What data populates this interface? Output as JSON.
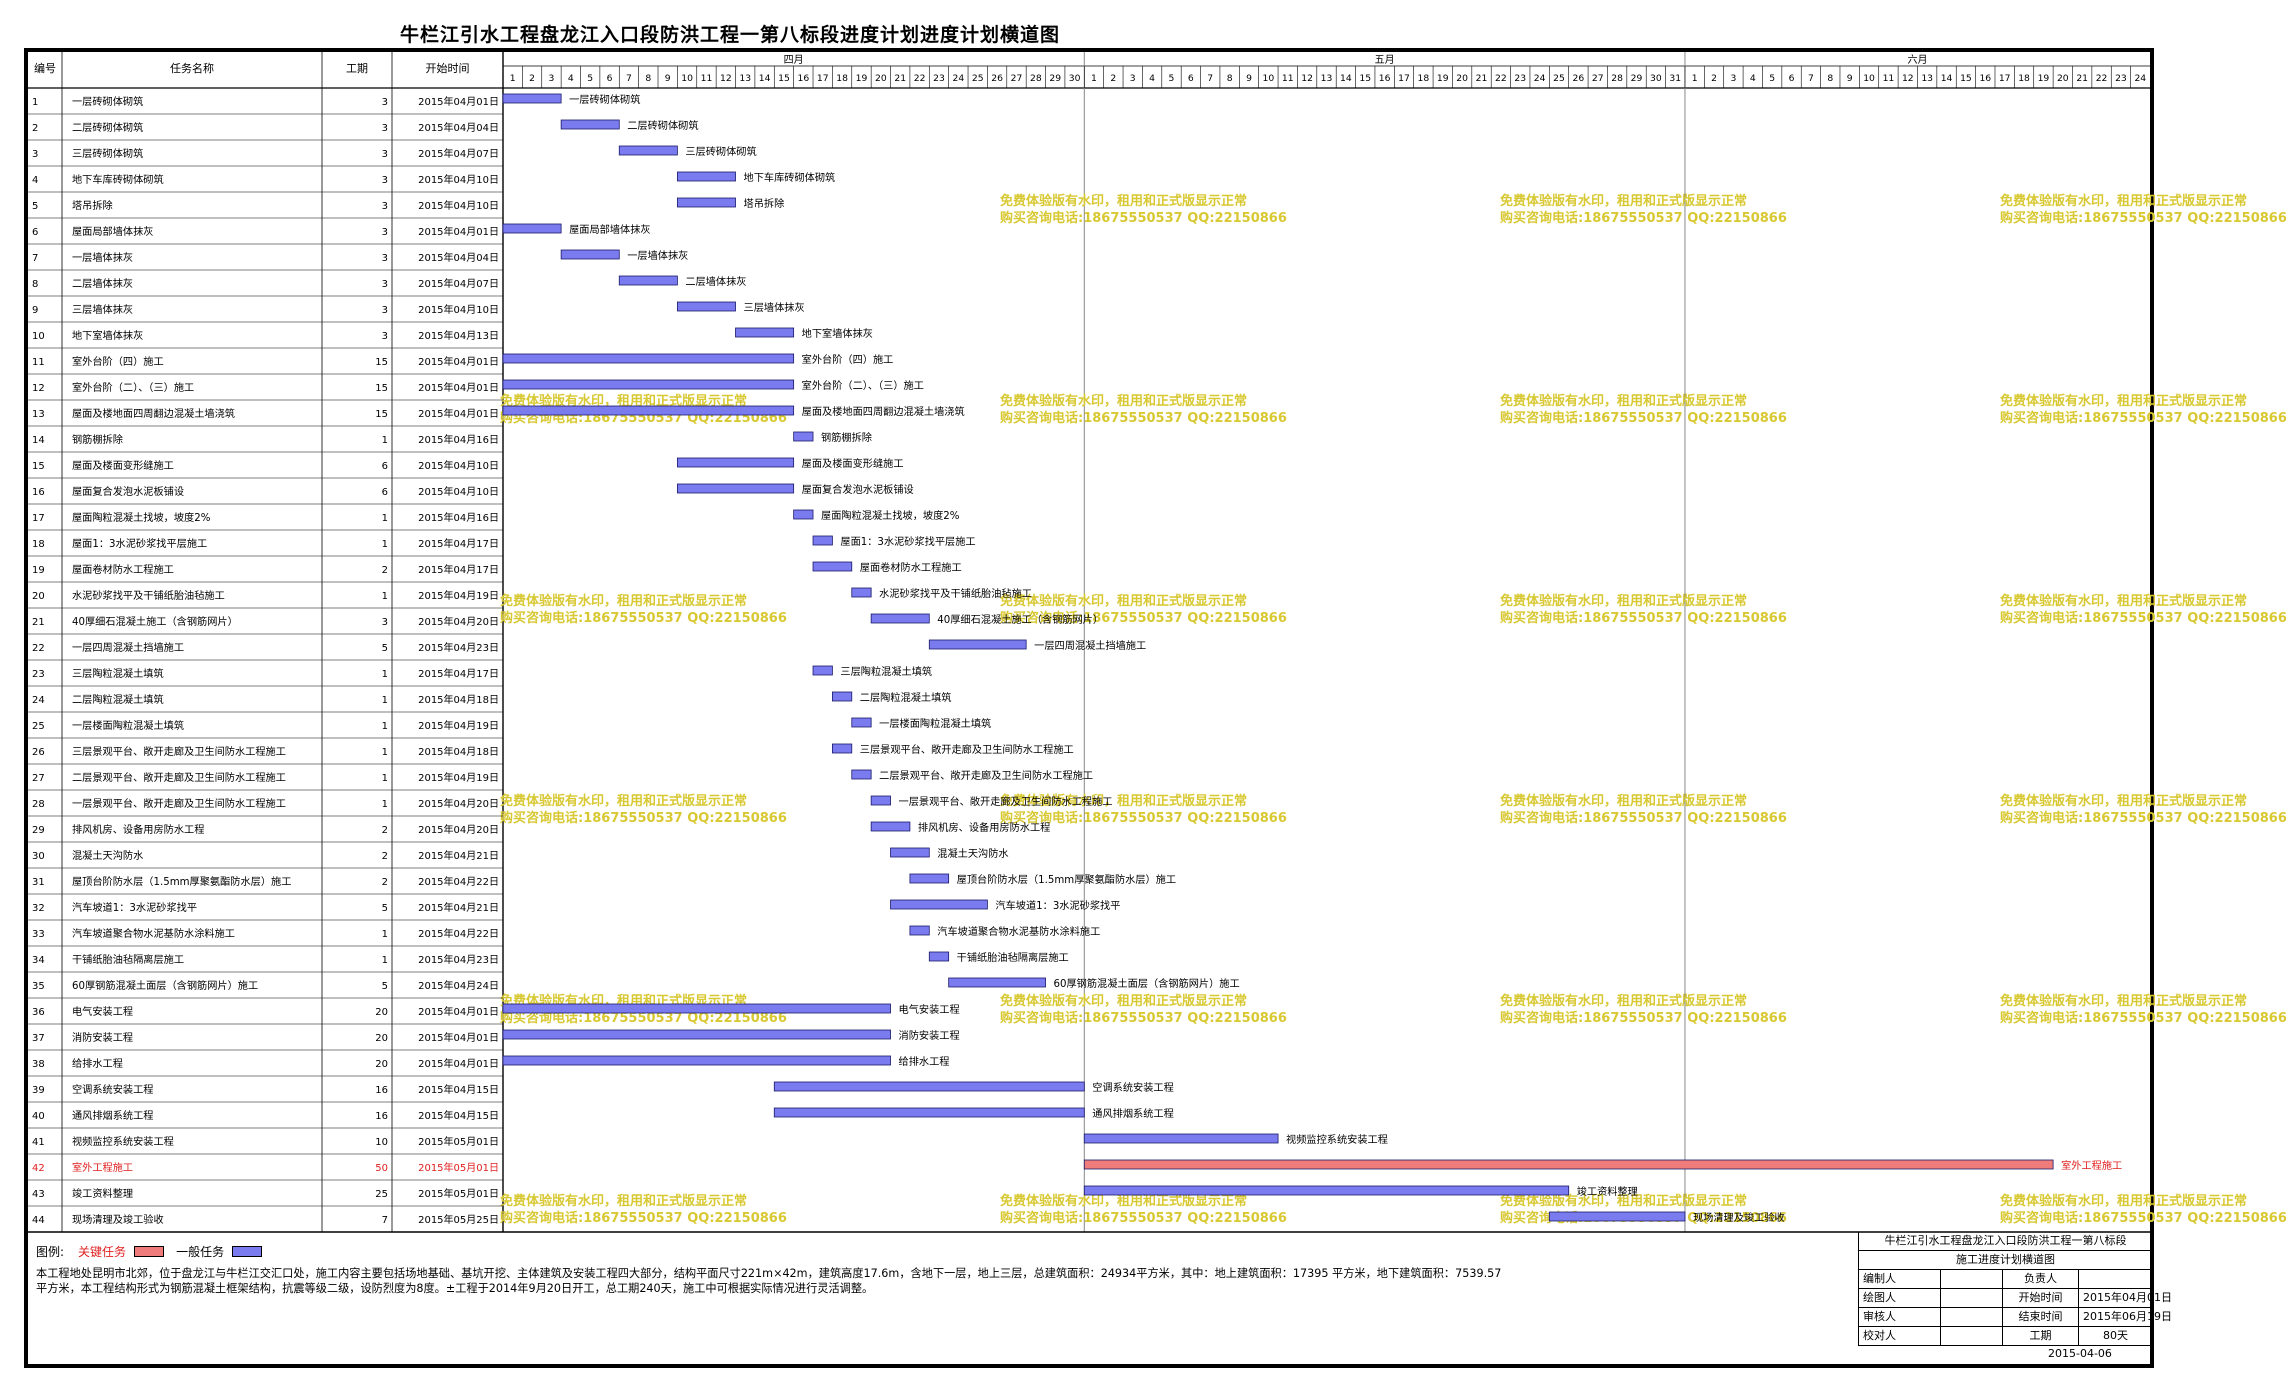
{
  "title": "牛栏江引水工程盘龙江入口段防洪工程一第八标段进度计划进度计划横道图",
  "table_headers": {
    "id": "编号",
    "name": "任务名称",
    "duration": "工期",
    "start": "开始时间"
  },
  "month_labels": [
    "四月",
    "五月",
    "六月"
  ],
  "colors": {
    "normal_bar": "#7b7bf0",
    "critical_bar": "#f07b7b",
    "critical_text": "#e02020",
    "watermark": "#d8c832"
  },
  "watermark": {
    "line1": "免费体验版有水印，租用和正式版显示正常",
    "line2": "购买咨询电话:18675550537 QQ:22150866"
  },
  "chart_data": {
    "type": "gantt",
    "start_date": "2015-04-01",
    "timeline_days": 85,
    "months": [
      {
        "label": "四月",
        "days": 30
      },
      {
        "label": "五月",
        "days": 31
      },
      {
        "label": "六月",
        "days": 24
      }
    ],
    "tasks": [
      {
        "id": "1",
        "name": "一层砖砌体砌筑",
        "duration": 3,
        "start": "2015年04月01日",
        "start_day": 1,
        "label": "一层砖砌体砌筑"
      },
      {
        "id": "2",
        "name": "二层砖砌体砌筑",
        "duration": 3,
        "start": "2015年04月04日",
        "start_day": 4,
        "label": "二层砖砌体砌筑"
      },
      {
        "id": "3",
        "name": "三层砖砌体砌筑",
        "duration": 3,
        "start": "2015年04月07日",
        "start_day": 7,
        "label": "三层砖砌体砌筑"
      },
      {
        "id": "4",
        "name": "地下车库砖砌体砌筑",
        "duration": 3,
        "start": "2015年04月10日",
        "start_day": 10,
        "label": "地下车库砖砌体砌筑"
      },
      {
        "id": "5",
        "name": "塔吊拆除",
        "duration": 3,
        "start": "2015年04月10日",
        "start_day": 10,
        "label": "塔吊拆除"
      },
      {
        "id": "6",
        "name": "屋面局部墙体抹灰",
        "duration": 3,
        "start": "2015年04月01日",
        "start_day": 1,
        "label": "屋面局部墙体抹灰"
      },
      {
        "id": "7",
        "name": "一层墙体抹灰",
        "duration": 3,
        "start": "2015年04月04日",
        "start_day": 4,
        "label": "一层墙体抹灰"
      },
      {
        "id": "8",
        "name": "二层墙体抹灰",
        "duration": 3,
        "start": "2015年04月07日",
        "start_day": 7,
        "label": "二层墙体抹灰"
      },
      {
        "id": "9",
        "name": "三层墙体抹灰",
        "duration": 3,
        "start": "2015年04月10日",
        "start_day": 10,
        "label": "三层墙体抹灰"
      },
      {
        "id": "10",
        "name": "地下室墙体抹灰",
        "duration": 3,
        "start": "2015年04月13日",
        "start_day": 13,
        "label": "地下室墙体抹灰"
      },
      {
        "id": "11",
        "name": "室外台阶（四）施工",
        "duration": 15,
        "start": "2015年04月01日",
        "start_day": 1,
        "label": "室外台阶（四）施工"
      },
      {
        "id": "12",
        "name": "室外台阶（二）、（三）施工",
        "duration": 15,
        "start": "2015年04月01日",
        "start_day": 1,
        "label": "室外台阶（二）、（三）施工"
      },
      {
        "id": "13",
        "name": "屋面及楼地面四周翻边混凝土墙浇筑",
        "duration": 15,
        "start": "2015年04月01日",
        "start_day": 1,
        "label": "屋面及楼地面四周翻边混凝土墙浇筑"
      },
      {
        "id": "14",
        "name": "钢筋棚拆除",
        "duration": 1,
        "start": "2015年04月16日",
        "start_day": 16,
        "label": "钢筋棚拆除"
      },
      {
        "id": "15",
        "name": "屋面及楼面变形缝施工",
        "duration": 6,
        "start": "2015年04月10日",
        "start_day": 10,
        "label": "屋面及楼面变形缝施工"
      },
      {
        "id": "16",
        "name": "屋面复合发泡水泥板铺设",
        "duration": 6,
        "start": "2015年04月10日",
        "start_day": 10,
        "label": "屋面复合发泡水泥板铺设"
      },
      {
        "id": "17",
        "name": "屋面陶粒混凝土找坡，坡度2%",
        "duration": 1,
        "start": "2015年04月16日",
        "start_day": 16,
        "label": "屋面陶粒混凝土找坡，坡度2%"
      },
      {
        "id": "18",
        "name": "屋面1：3水泥砂浆找平层施工",
        "duration": 1,
        "start": "2015年04月17日",
        "start_day": 17,
        "label": "屋面1：3水泥砂浆找平层施工"
      },
      {
        "id": "19",
        "name": "屋面卷材防水工程施工",
        "duration": 2,
        "start": "2015年04月17日",
        "start_day": 17,
        "label": "屋面卷材防水工程施工"
      },
      {
        "id": "20",
        "name": "水泥砂浆找平及干铺纸胎油毡施工",
        "duration": 1,
        "start": "2015年04月19日",
        "start_day": 19,
        "label": "水泥砂浆找平及干铺纸胎油毡施工"
      },
      {
        "id": "21",
        "name": "40厚细石混凝土施工（含钢筋网片）",
        "duration": 3,
        "start": "2015年04月20日",
        "start_day": 20,
        "label": "40厚细石混凝土施工（含钢筋网片）"
      },
      {
        "id": "22",
        "name": "一层四周混凝土挡墙施工",
        "duration": 5,
        "start": "2015年04月23日",
        "start_day": 23,
        "label": "一层四周混凝土挡墙施工"
      },
      {
        "id": "23",
        "name": "三层陶粒混凝土填筑",
        "duration": 1,
        "start": "2015年04月17日",
        "start_day": 17,
        "label": "三层陶粒混凝土填筑"
      },
      {
        "id": "24",
        "name": "二层陶粒混凝土填筑",
        "duration": 1,
        "start": "2015年04月18日",
        "start_day": 18,
        "label": "二层陶粒混凝土填筑"
      },
      {
        "id": "25",
        "name": "一层楼面陶粒混凝土填筑",
        "duration": 1,
        "start": "2015年04月19日",
        "start_day": 19,
        "label": "一层楼面陶粒混凝土填筑"
      },
      {
        "id": "26",
        "name": "三层景观平台、敞开走廊及卫生间防水工程施工",
        "duration": 1,
        "start": "2015年04月18日",
        "start_day": 18,
        "label": "三层景观平台、敞开走廊及卫生间防水工程施工"
      },
      {
        "id": "27",
        "name": "二层景观平台、敞开走廊及卫生间防水工程施工",
        "duration": 1,
        "start": "2015年04月19日",
        "start_day": 19,
        "label": "二层景观平台、敞开走廊及卫生间防水工程施工"
      },
      {
        "id": "28",
        "name": "一层景观平台、敞开走廊及卫生间防水工程施工",
        "duration": 1,
        "start": "2015年04月20日",
        "start_day": 20,
        "label": "一层景观平台、敞开走廊及卫生间防水工程施工"
      },
      {
        "id": "29",
        "name": "排风机房、设备用房防水工程",
        "duration": 2,
        "start": "2015年04月20日",
        "start_day": 20,
        "label": "排风机房、设备用房防水工程"
      },
      {
        "id": "30",
        "name": "混凝土天沟防水",
        "duration": 2,
        "start": "2015年04月21日",
        "start_day": 21,
        "label": "混凝土天沟防水"
      },
      {
        "id": "31",
        "name": "屋顶台阶防水层（1.5mm厚聚氨酯防水层）施工",
        "duration": 2,
        "start": "2015年04月22日",
        "start_day": 22,
        "label": "屋顶台阶防水层（1.5mm厚聚氨酯防水层）施工"
      },
      {
        "id": "32",
        "name": "汽车坡道1：3水泥砂浆找平",
        "duration": 5,
        "start": "2015年04月21日",
        "start_day": 21,
        "label": "汽车坡道1：3水泥砂浆找平"
      },
      {
        "id": "33",
        "name": "汽车坡道聚合物水泥基防水涂料施工",
        "duration": 1,
        "start": "2015年04月22日",
        "start_day": 22,
        "label": "汽车坡道聚合物水泥基防水涂料施工"
      },
      {
        "id": "34",
        "name": "干铺纸胎油毡隔离层施工",
        "duration": 1,
        "start": "2015年04月23日",
        "start_day": 23,
        "label": "干铺纸胎油毡隔离层施工"
      },
      {
        "id": "35",
        "name": "60厚钢筋混凝土面层（含钢筋网片）施工",
        "duration": 5,
        "start": "2015年04月24日",
        "start_day": 24,
        "label": "60厚钢筋混凝土面层（含钢筋网片）施工"
      },
      {
        "id": "36",
        "name": "电气安装工程",
        "duration": 20,
        "start": "2015年04月01日",
        "start_day": 1,
        "label": "电气安装工程"
      },
      {
        "id": "37",
        "name": "消防安装工程",
        "duration": 20,
        "start": "2015年04月01日",
        "start_day": 1,
        "label": "消防安装工程"
      },
      {
        "id": "38",
        "name": "给排水工程",
        "duration": 20,
        "start": "2015年04月01日",
        "start_day": 1,
        "label": "给排水工程"
      },
      {
        "id": "39",
        "name": "空调系统安装工程",
        "duration": 16,
        "start": "2015年04月15日",
        "start_day": 15,
        "label": "空调系统安装工程"
      },
      {
        "id": "40",
        "name": "通风排烟系统工程",
        "duration": 16,
        "start": "2015年04月15日",
        "start_day": 15,
        "label": "通风排烟系统工程"
      },
      {
        "id": "41",
        "name": "视频监控系统安装工程",
        "duration": 10,
        "start": "2015年05月01日",
        "start_day": 31,
        "label": "视频监控系统安装工程"
      },
      {
        "id": "42",
        "name": "室外工程施工",
        "duration": 50,
        "start": "2015年05月01日",
        "start_day": 31,
        "label": "室外工程施工",
        "critical": true
      },
      {
        "id": "43",
        "name": "竣工资料整理",
        "duration": 25,
        "start": "2015年05月01日",
        "start_day": 31,
        "label": "竣工资料整理"
      },
      {
        "id": "44",
        "name": "现场清理及竣工验收",
        "duration": 7,
        "start": "2015年05月25日",
        "start_day": 55,
        "label": "现场清理及竣工验收"
      }
    ]
  },
  "legend": {
    "label": "图例:",
    "critical": "关键任务",
    "normal": "一般任务"
  },
  "description": "本工程地处昆明市北郊，位于盘龙江与牛栏江交汇口处，施工内容主要包括场地基础、基坑开挖、主体建筑及安装工程四大部分，结构平面尺寸221m×42m，建筑高度17.6m，含地下一层，地上三层，总建筑面积：24934平方米，其中：地上建筑面积：17395 平方米，地下建筑面积：7539.57 平方米，本工程结构形式为钢筋混凝土框架结构，抗震等级二级，设防烈度为8度。±工程于2014年9月20日开工，总工期240天，施工中可根据实际情况进行灵活调整。",
  "info_box": {
    "project": "牛栏江引水工程盘龙江入口段防洪工程一第八标段",
    "chart_name": "施工进度计划横道图",
    "rows": [
      {
        "k1": "编制人",
        "v1": "",
        "k2": "负责人",
        "v2": ""
      },
      {
        "k1": "绘图人",
        "v1": "",
        "k2": "开始时间",
        "v2": "2015年04月01日"
      },
      {
        "k1": "审核人",
        "v1": "",
        "k2": "结束时间",
        "v2": "2015年06月19日"
      },
      {
        "k1": "校对人",
        "v1": "",
        "k2": "工期",
        "v2": "80天"
      }
    ],
    "date": "2015-04-06"
  }
}
